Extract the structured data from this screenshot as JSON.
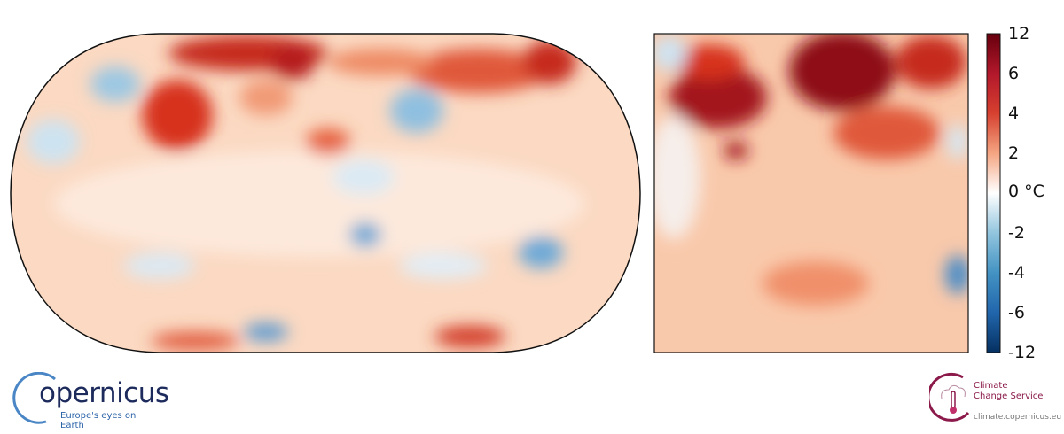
{
  "maps": {
    "global": {
      "name": "global temperature anomaly map"
    },
    "europe": {
      "name": "europe temperature anomaly map"
    }
  },
  "colorbar": {
    "unit": "°C",
    "labels": [
      "12",
      "6",
      "4",
      "2",
      "0 °C",
      "-2",
      "-4",
      "-6",
      "-12"
    ],
    "colors": [
      "#67000d",
      "#b2182b",
      "#d6402f",
      "#f4a582",
      "#ffffff",
      "#92c5de",
      "#4393c3",
      "#2166ac",
      "#053061"
    ]
  },
  "logos": {
    "copernicus": {
      "word": "opernicus",
      "tagline": "Europe's eyes on Earth"
    },
    "c3s": {
      "title_line1": "Climate",
      "title_line2": "Change Service",
      "url": "climate.copernicus.eu"
    }
  }
}
